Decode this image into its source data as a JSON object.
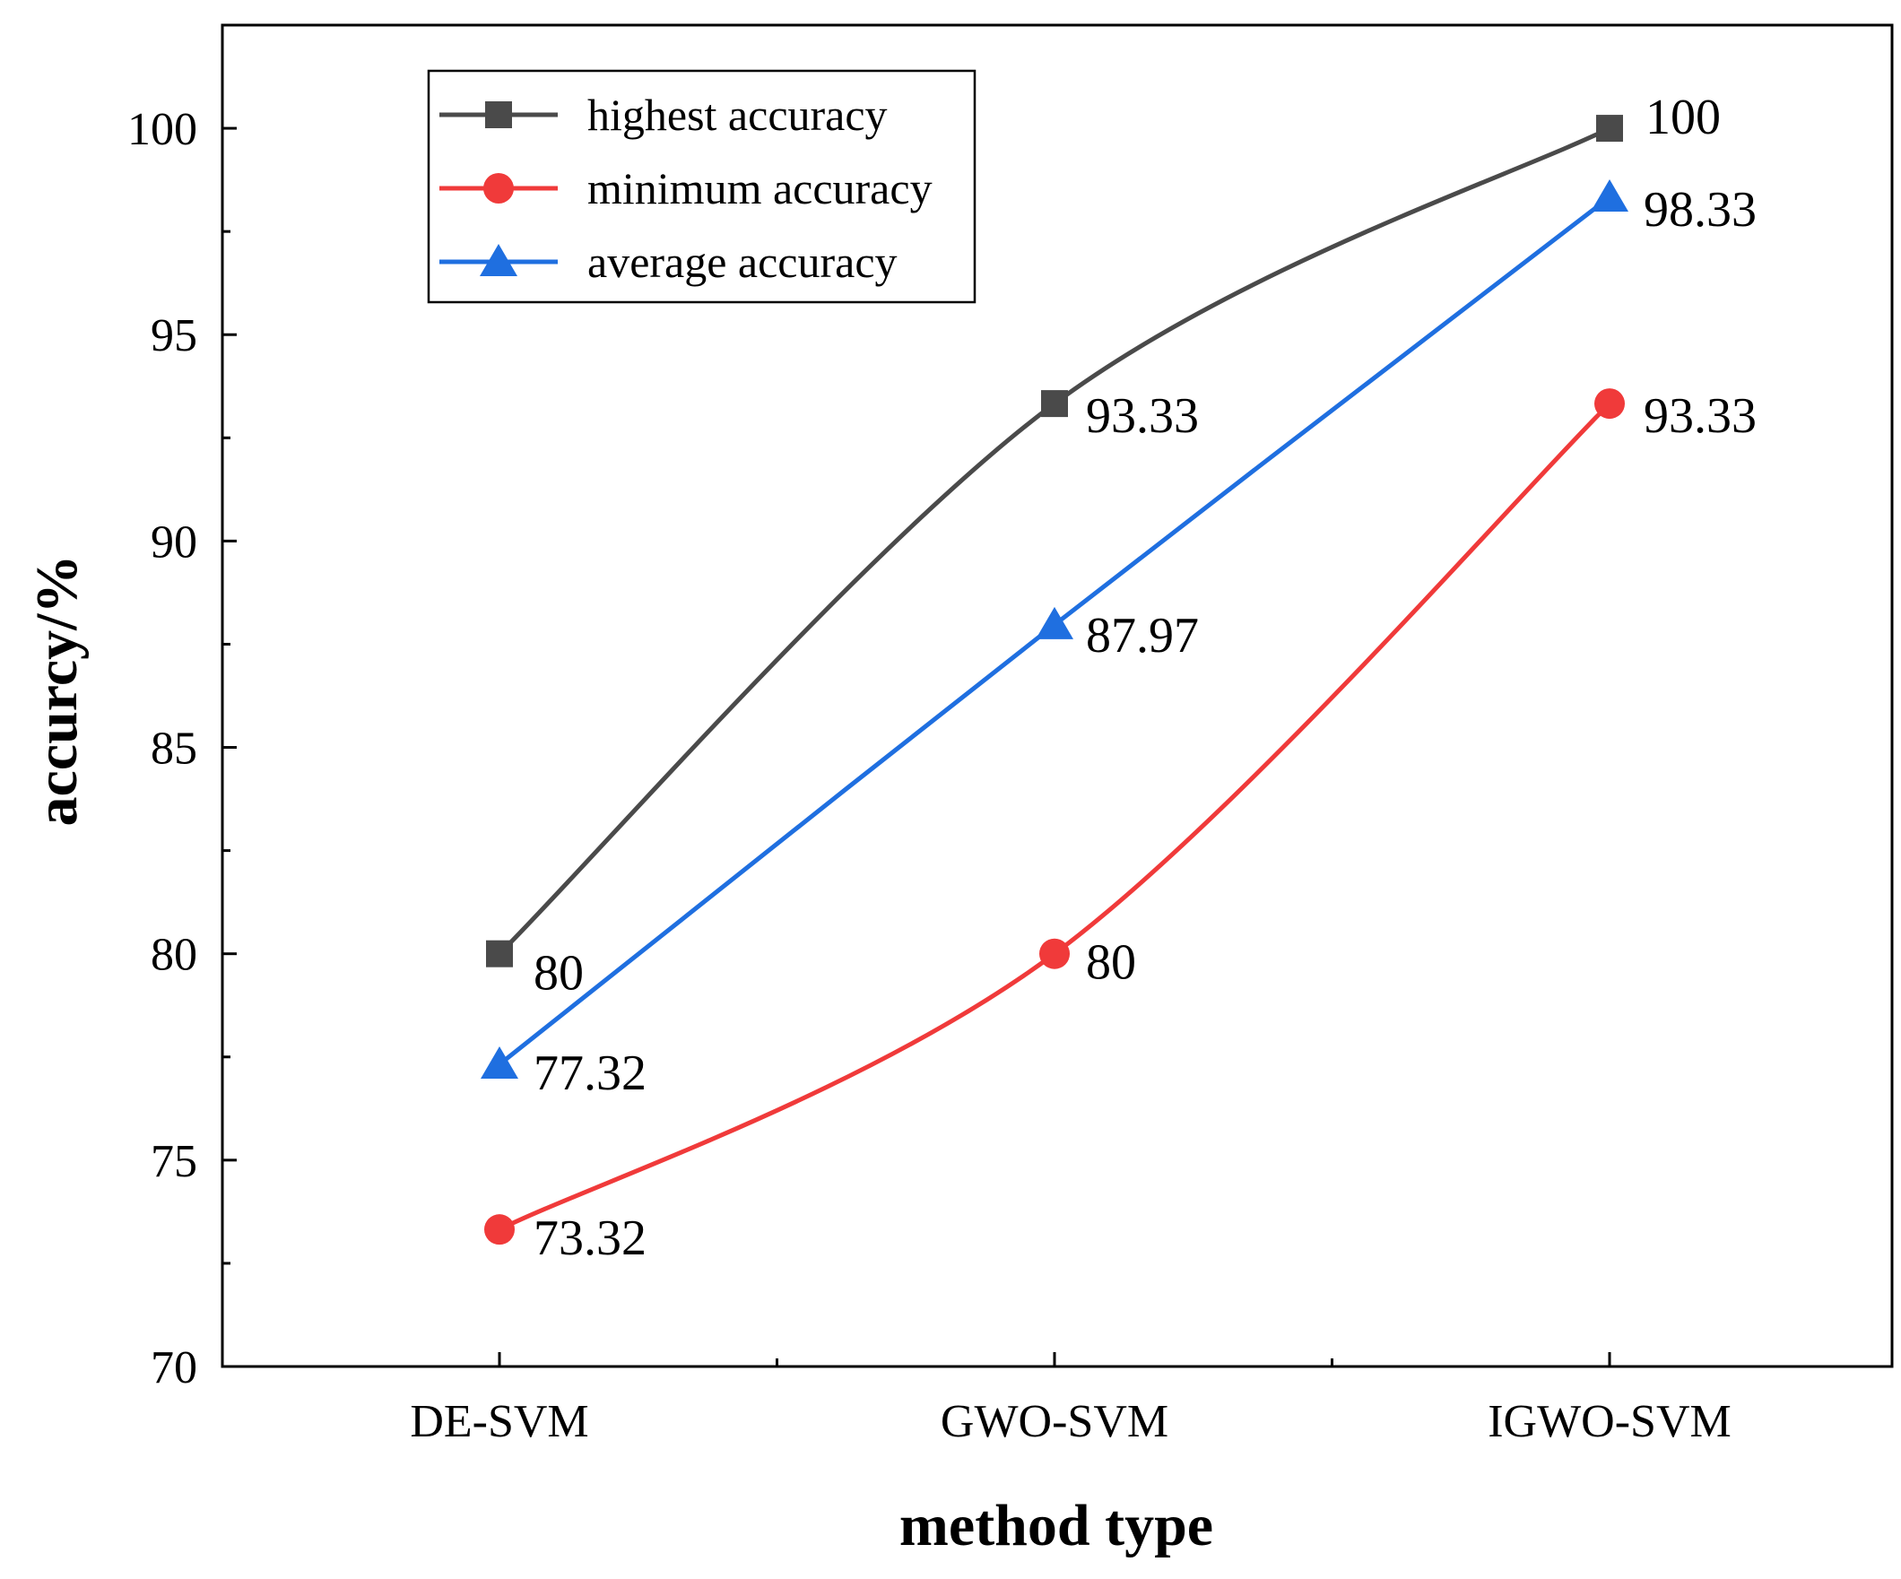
{
  "chart_data": {
    "type": "line",
    "title": "",
    "xlabel": "method type",
    "ylabel": "accurcy/%",
    "categories": [
      "DE-SVM",
      "GWO-SVM",
      "IGWO-SVM"
    ],
    "ylim": [
      70,
      102.5
    ],
    "yticks": [
      70,
      75,
      80,
      85,
      90,
      95,
      100
    ],
    "grid": false,
    "legend_position": "top-left",
    "series": [
      {
        "name": "highest accuracy",
        "values": [
          80,
          93.33,
          100
        ],
        "labels": [
          "80",
          "93.33",
          "100"
        ],
        "color": "#4a4a4a",
        "marker": "square"
      },
      {
        "name": "minimum accuracy",
        "values": [
          73.32,
          80,
          93.33
        ],
        "labels": [
          "73.32",
          "80",
          "93.33"
        ],
        "color": "#f03a3a",
        "marker": "circle"
      },
      {
        "name": "average accuracy",
        "values": [
          77.32,
          87.97,
          98.33
        ],
        "labels": [
          "77.32",
          "87.97",
          "98.33"
        ],
        "color": "#1f6fe0",
        "marker": "triangle"
      }
    ]
  }
}
